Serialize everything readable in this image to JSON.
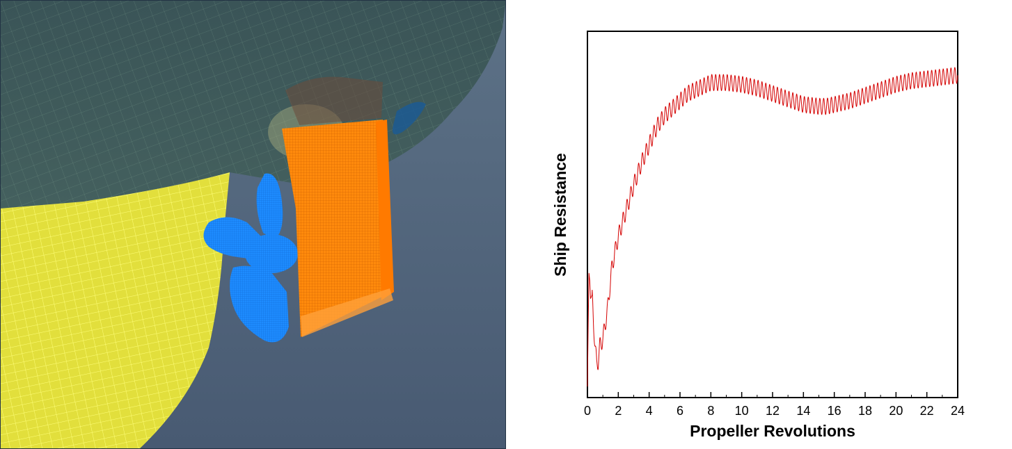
{
  "render": {
    "colors": {
      "background": "#4d6079",
      "hull": "#3c5558",
      "rudder": "#ff8a0c",
      "propeller": "#1e8cff",
      "shaft_fairing": "#eeea48",
      "wake": "#1c5b93"
    }
  },
  "chart_data": {
    "type": "line",
    "title": "",
    "xlabel": "Propeller Revolutions",
    "ylabel": "Ship Resistance",
    "xlim": [
      0,
      24
    ],
    "ylim": [
      0,
      100
    ],
    "x_ticks": [
      "0",
      "2",
      "4",
      "6",
      "8",
      "10",
      "12",
      "14",
      "16",
      "18",
      "20",
      "22",
      "24"
    ],
    "y_ticks_shown": false,
    "grid": false,
    "legend": "none",
    "series": [
      {
        "color": "#d40000",
        "oscillation_amplitude": 2.2,
        "oscillation_per_revolution": 4,
        "x": [
          0,
          0.05,
          0.1,
          0.15,
          0.2,
          0.3,
          0.4,
          0.5,
          0.6,
          0.7,
          0.8,
          1.0,
          1.3,
          1.6,
          2.0,
          2.5,
          3.0,
          3.5,
          4.0,
          4.5,
          5.0,
          5.5,
          6.0,
          6.5,
          7.0,
          7.5,
          8.0,
          8.5,
          9.0,
          10.0,
          11.0,
          12.0,
          13.0,
          14.0,
          15.0,
          15.5,
          16.0,
          17.0,
          18.0,
          19.0,
          20.0,
          21.0,
          22.0,
          23.0,
          24.0
        ],
        "y": [
          3,
          20,
          34,
          32,
          27,
          28,
          20,
          14,
          9,
          10,
          14,
          16,
          24,
          36,
          44,
          51,
          58,
          64,
          69,
          74,
          77,
          79,
          81,
          83,
          84,
          85,
          86,
          86,
          86,
          85.5,
          84.5,
          83,
          81.5,
          80,
          79.5,
          79.5,
          80,
          81,
          82.5,
          84,
          85.5,
          86.5,
          87,
          87.5,
          88
        ]
      }
    ]
  }
}
